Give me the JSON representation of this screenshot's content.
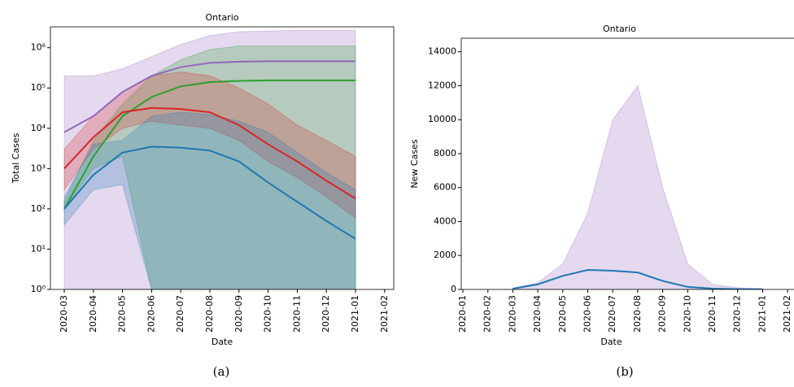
{
  "chart_data": [
    {
      "type": "line",
      "title": "Ontario",
      "caption": "(a)",
      "xlabel": "Date",
      "ylabel": "Total Cases",
      "log_y": true,
      "xticks": [
        "2020-03",
        "2020-04",
        "2020-05",
        "2020-06",
        "2020-07",
        "2020-08",
        "2020-09",
        "2020-10",
        "2020-11",
        "2020-12",
        "2021-01",
        "2021-02"
      ],
      "ylim": [
        1,
        3300000
      ],
      "yticks": [
        {
          "value": 1,
          "label": "10⁰"
        },
        {
          "value": 10,
          "label": "10¹"
        },
        {
          "value": 100,
          "label": "10²"
        },
        {
          "value": 1000,
          "label": "10³"
        },
        {
          "value": 10000,
          "label": "10⁴"
        },
        {
          "value": 100000,
          "label": "10⁵"
        },
        {
          "value": 1000000,
          "label": "10⁶"
        }
      ],
      "x": [
        "2020-03",
        "2020-04",
        "2020-05",
        "2020-06",
        "2020-07",
        "2020-08",
        "2020-09",
        "2020-10",
        "2020-11",
        "2020-12",
        "2021-01"
      ],
      "series": [
        {
          "color": "#9467bd",
          "values": [
            8000,
            20000,
            80000,
            200000,
            330000,
            420000,
            450000,
            460000,
            460000,
            460000,
            460000
          ],
          "lower": [
            1,
            1,
            1,
            1,
            1,
            1,
            1,
            1,
            1,
            1,
            1
          ],
          "upper": [
            200000,
            200000,
            300000,
            600000,
            1200000,
            2000000,
            2500000,
            2600000,
            2700000,
            2700000,
            2700000
          ]
        },
        {
          "color": "#2ca02c",
          "values": [
            100,
            2000,
            20000,
            60000,
            110000,
            140000,
            150000,
            155000,
            155000,
            155000,
            155000
          ],
          "lower": [
            100,
            1000,
            2000,
            1,
            1,
            1,
            1,
            1,
            1,
            1,
            1
          ],
          "upper": [
            150,
            5000,
            40000,
            200000,
            500000,
            900000,
            1100000,
            1100000,
            1100000,
            1100000,
            1100000
          ]
        },
        {
          "color": "#d62728",
          "values": [
            1000,
            6000,
            25000,
            32000,
            30000,
            25000,
            12000,
            4000,
            1500,
            500,
            180
          ],
          "lower": [
            300,
            3000,
            10000,
            15000,
            12000,
            10000,
            5000,
            1500,
            600,
            200,
            60
          ],
          "upper": [
            3000,
            20000,
            80000,
            200000,
            250000,
            200000,
            100000,
            40000,
            12000,
            5000,
            2000
          ]
        },
        {
          "color": "#1f77b4",
          "values": [
            100,
            700,
            2500,
            3500,
            3300,
            2800,
            1500,
            450,
            150,
            50,
            18
          ],
          "lower": [
            40,
            300,
            400,
            1,
            1,
            1,
            1,
            1,
            1,
            1,
            1
          ],
          "upper": [
            200,
            4000,
            5000,
            20000,
            25000,
            22000,
            15000,
            8000,
            2500,
            800,
            300
          ]
        }
      ]
    },
    {
      "type": "line",
      "title": "Ontario",
      "caption": "(b)",
      "xlabel": "Date",
      "ylabel": "New Cases",
      "log_y": false,
      "xticks": [
        "2020-01",
        "2020-02",
        "2020-03",
        "2020-04",
        "2020-05",
        "2020-06",
        "2020-07",
        "2020-08",
        "2020-09",
        "2020-10",
        "2020-11",
        "2020-12",
        "2021-01",
        "2021-02"
      ],
      "ylim": [
        0,
        14800
      ],
      "yticks": [
        0,
        2000,
        4000,
        6000,
        8000,
        10000,
        12000,
        14000
      ],
      "x": [
        "2020-03",
        "2020-04",
        "2020-05",
        "2020-06",
        "2020-07",
        "2020-08",
        "2020-09",
        "2020-10",
        "2020-11",
        "2020-12",
        "2021-01"
      ],
      "series": [
        {
          "color": "#1f77b4",
          "values": [
            50,
            300,
            800,
            1150,
            1100,
            1000,
            500,
            150,
            50,
            20,
            5
          ],
          "lower": [
            0,
            0,
            0,
            0,
            0,
            0,
            0,
            0,
            0,
            0,
            0
          ],
          "upper": [
            50,
            400,
            1500,
            4500,
            10000,
            12000,
            6000,
            1500,
            300,
            100,
            50
          ],
          "band_color": "#9467bd"
        }
      ]
    }
  ]
}
